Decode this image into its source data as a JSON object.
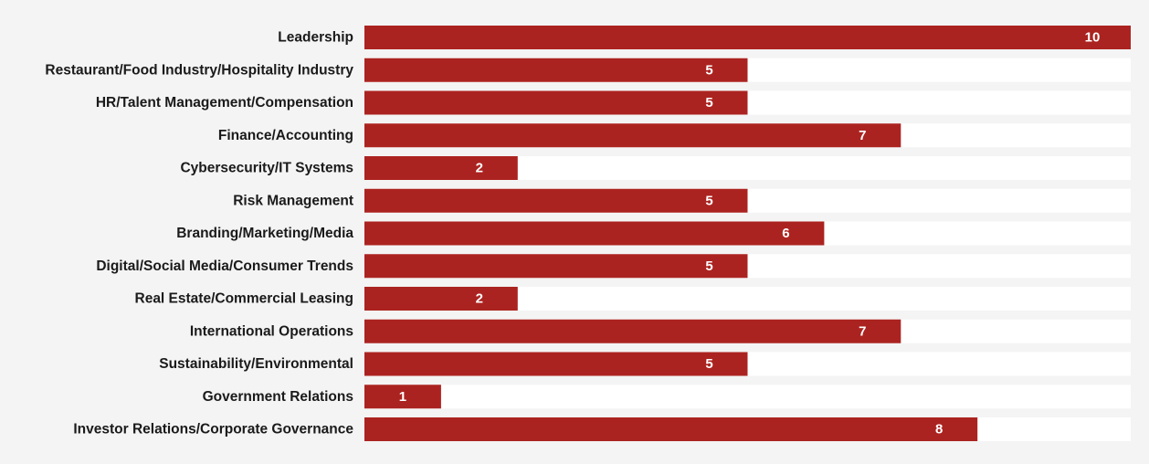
{
  "chart_data": {
    "type": "bar",
    "orientation": "horizontal",
    "categories": [
      "Leadership",
      "Restaurant/Food Industry/Hospitality Industry",
      "HR/Talent Management/Compensation",
      "Finance/Accounting",
      "Cybersecurity/IT Systems",
      "Risk Management",
      "Branding/Marketing/Media",
      "Digital/Social Media/Consumer Trends",
      "Real Estate/Commercial Leasing",
      "International Operations",
      "Sustainability/Environmental",
      "Government Relations",
      "Investor Relations/Corporate Governance"
    ],
    "values": [
      10,
      5,
      5,
      7,
      2,
      5,
      6,
      5,
      2,
      7,
      5,
      1,
      8
    ],
    "xlim": [
      0,
      10
    ],
    "grid": false,
    "legend": "none",
    "title": "",
    "xlabel": "",
    "ylabel": "",
    "colors": {
      "bar": "#ab2320",
      "track": "#ffffff",
      "background": "#f4f4f4",
      "category_text": "#1a1a1a",
      "value_text": "#ffffff"
    }
  }
}
